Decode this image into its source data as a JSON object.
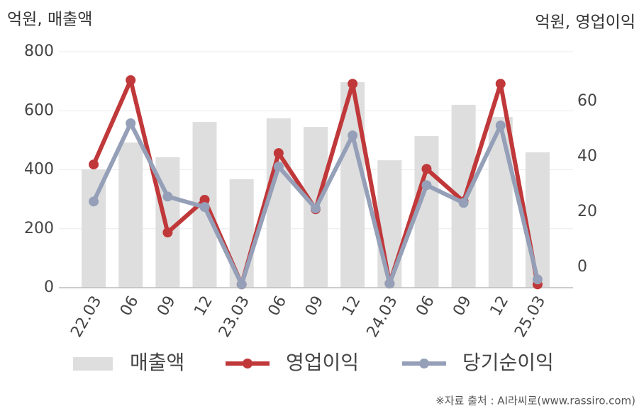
{
  "chart_data": {
    "type": "bar",
    "y_label": "억원, 매출액",
    "y2_label": "억원, 영업이익",
    "categories": [
      "22.03",
      "06",
      "09",
      "12",
      "23.03",
      "06",
      "09",
      "12",
      "24.03",
      "06",
      "09",
      "12",
      "25.03"
    ],
    "series": [
      {
        "name": "매출액",
        "type": "bar",
        "color": "#dedede",
        "values": [
          401,
          492,
          442,
          562,
          368,
          574,
          545,
          697,
          432,
          514,
          620,
          579,
          459
        ]
      },
      {
        "name": "영업이익",
        "type": "line",
        "axis": "y2",
        "color": "#c0383a",
        "values": [
          37.2,
          67.7,
          12.6,
          24.4,
          -6.2,
          41.3,
          21.0,
          66.4,
          -5.9,
          35.6,
          23.8,
          66.4,
          -6.2
        ]
      },
      {
        "name": "당기순이익",
        "type": "line",
        "axis": "y2",
        "color": "#95a0b8",
        "values": [
          23.8,
          52.1,
          25.6,
          21.8,
          -6.2,
          36.4,
          21.3,
          47.7,
          -5.9,
          29.7,
          23.3,
          51.3,
          -4.4
        ]
      }
    ],
    "ylim": [
      0,
      800
    ],
    "yticks": [
      0,
      200,
      400,
      600,
      800
    ],
    "y2lim": [
      -7.4,
      78
    ],
    "y2ticks": [
      0,
      20,
      40,
      60
    ],
    "grid": true
  },
  "source": "※자료 출처 : AI라씨로(www.rassiro.com)"
}
